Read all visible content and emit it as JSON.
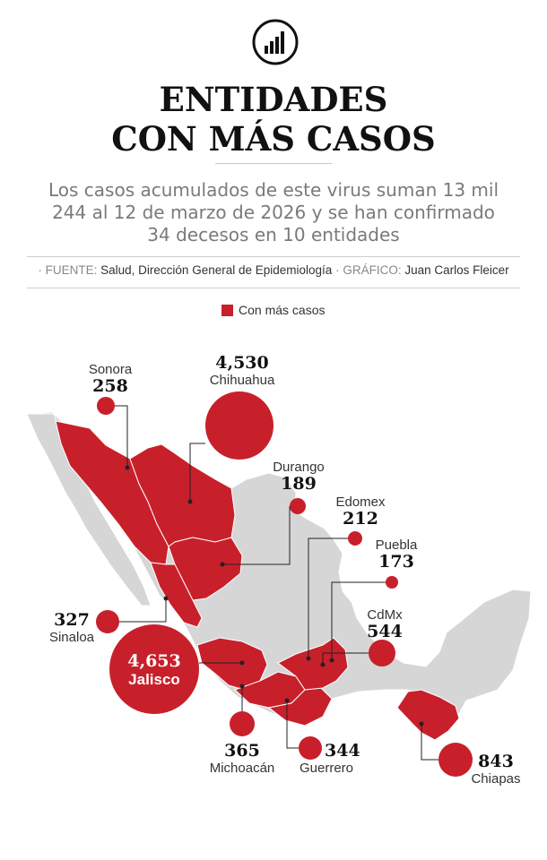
{
  "header": {
    "title_line1": "ENTIDADES",
    "title_line2": "CON MÁS CASOS",
    "subtitle_line1": "Los casos acumulados de este virus suman 13 mil",
    "subtitle_line2": "244 al 12 de marzo de 2026 y se han confirmado",
    "subtitle_line3": "34 decesos en 10 entidades"
  },
  "credits": {
    "source_key": "FUENTE:",
    "source_value": "Salud, Dirección General de Epidemiología",
    "graphic_key": "GRÁFICO:",
    "graphic_value": "Juan Carlos Fleicer"
  },
  "legend": {
    "label": "Con más casos",
    "color": "#c8202b"
  },
  "colors": {
    "highlight": "#c8202b",
    "base_map": "#d6d6d6",
    "border": "#ffffff"
  },
  "states": [
    {
      "id": "sonora",
      "name": "Sonora",
      "value": "258"
    },
    {
      "id": "chihuahua",
      "name": "Chihuahua",
      "value": "4,530"
    },
    {
      "id": "durango",
      "name": "Durango",
      "value": "189"
    },
    {
      "id": "edomex",
      "name": "Edomex",
      "value": "212"
    },
    {
      "id": "puebla",
      "name": "Puebla",
      "value": "173"
    },
    {
      "id": "cdmx",
      "name": "CdMx",
      "value": "544"
    },
    {
      "id": "sinaloa",
      "name": "Sinaloa",
      "value": "327"
    },
    {
      "id": "jalisco",
      "name": "Jalisco",
      "value": "4,653"
    },
    {
      "id": "michoacan",
      "name": "Michoacán",
      "value": "365"
    },
    {
      "id": "guerrero",
      "name": "Guerrero",
      "value": "344"
    },
    {
      "id": "chiapas",
      "name": "Chiapas",
      "value": "843"
    }
  ]
}
